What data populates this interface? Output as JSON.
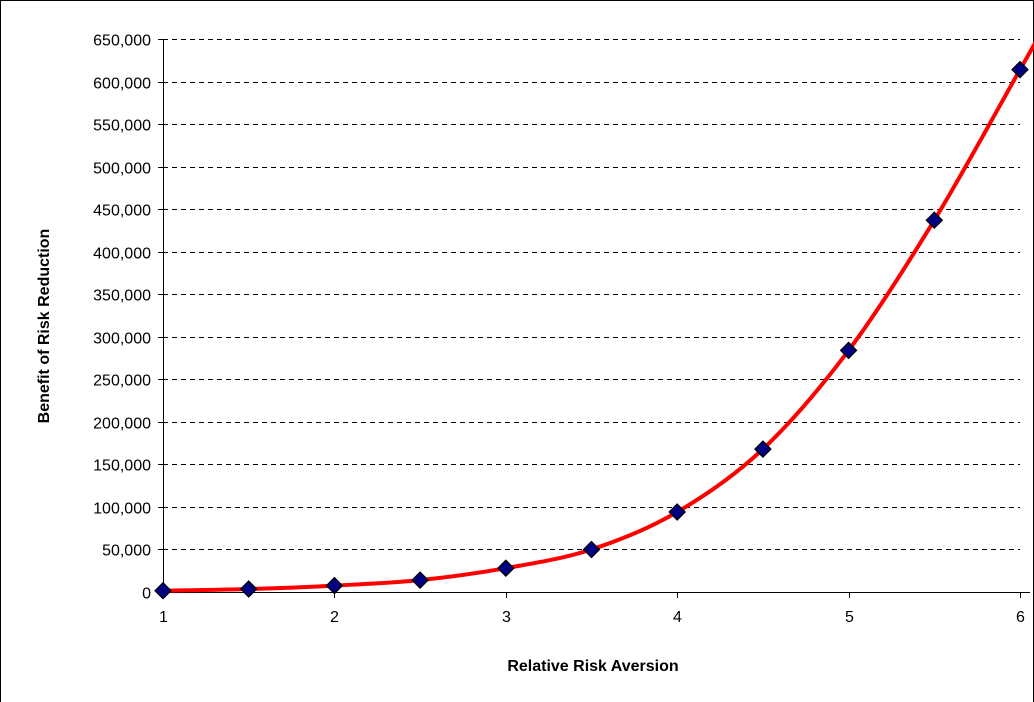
{
  "chart_data": {
    "type": "line",
    "title": "",
    "xlabel": "Relative Risk Aversion",
    "ylabel": "Benefit of Risk Reduction",
    "xlim": [
      1,
      6
    ],
    "ylim": [
      0,
      650000
    ],
    "x_ticks": [
      1,
      2,
      3,
      4,
      5,
      6
    ],
    "x_tick_labels": [
      "1",
      "2",
      "3",
      "4",
      "5",
      "6"
    ],
    "y_ticks": [
      0,
      50000,
      100000,
      150000,
      200000,
      250000,
      300000,
      350000,
      400000,
      450000,
      500000,
      550000,
      600000,
      650000
    ],
    "y_tick_labels": [
      "0",
      "50,000",
      "100,000",
      "150,000",
      "200,000",
      "250,000",
      "300,000",
      "350,000",
      "400,000",
      "450,000",
      "500,000",
      "550,000",
      "600,000",
      "650,000"
    ],
    "grid": "horizontal dashed",
    "legend": "none",
    "series": [
      {
        "x": [
          1,
          1.5,
          2,
          2.5,
          3,
          3.5,
          4,
          4.5,
          5,
          5.5,
          6
        ],
        "y": [
          1500,
          3500,
          7500,
          14000,
          28000,
          50000,
          94000,
          168000,
          284000,
          437000,
          614000
        ],
        "line_color": "#ff0000",
        "marker": "diamond",
        "marker_color": "#000080"
      }
    ]
  }
}
